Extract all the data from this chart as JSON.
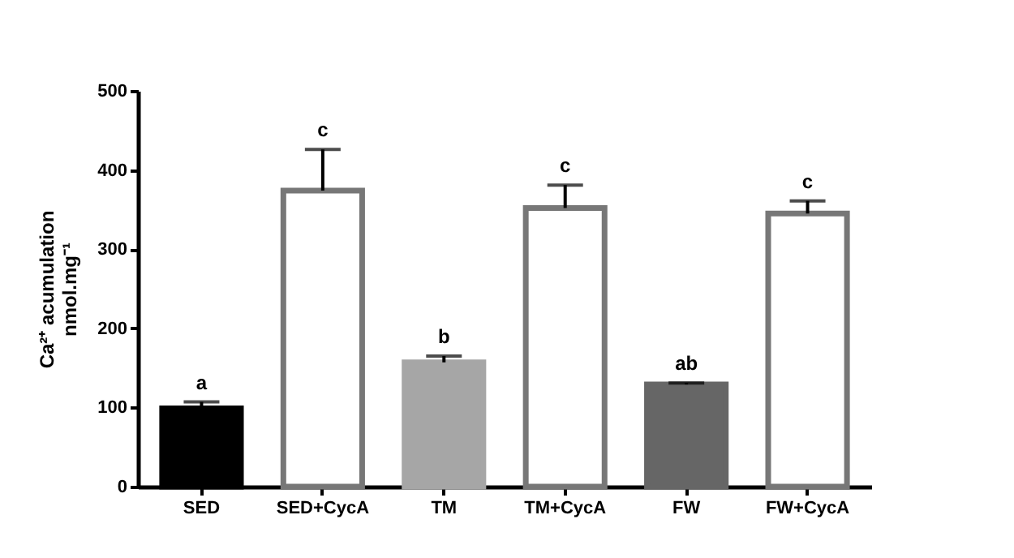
{
  "chart_data": {
    "type": "bar",
    "ylabel": "Ca²⁺ acumulation\nnmol.mg⁻¹",
    "categories": [
      "SED",
      "SED+CycA",
      "TM",
      "TM+CycA",
      "FW",
      "FW+CycA"
    ],
    "values": [
      99,
      374,
      157,
      352,
      129,
      345
    ],
    "colors": [
      "#000000",
      "#ffffff",
      "#a6a6a6",
      "#ffffff",
      "#666666",
      "#ffffff"
    ],
    "errors": [
      [
        99,
        107
      ],
      [
        374,
        426
      ],
      [
        157,
        165
      ],
      [
        352,
        381
      ],
      [
        129,
        131
      ],
      [
        345,
        361
      ]
    ],
    "annotations": [
      {
        "text": "a",
        "x": "SED",
        "y": 107
      },
      {
        "text": "c",
        "x": "SED+CycA",
        "y": 426
      },
      {
        "text": "b",
        "x": "TM",
        "y": 165
      },
      {
        "text": "c",
        "x": "TM+CycA",
        "y": 381
      },
      {
        "text": "ab",
        "x": "FW",
        "y": 131
      },
      {
        "text": "c",
        "x": "FW+CycA",
        "y": 361
      }
    ],
    "ylim": [
      0,
      500
    ],
    "yticks": [
      0,
      100,
      200,
      300,
      400,
      500
    ],
    "grid": false
  }
}
